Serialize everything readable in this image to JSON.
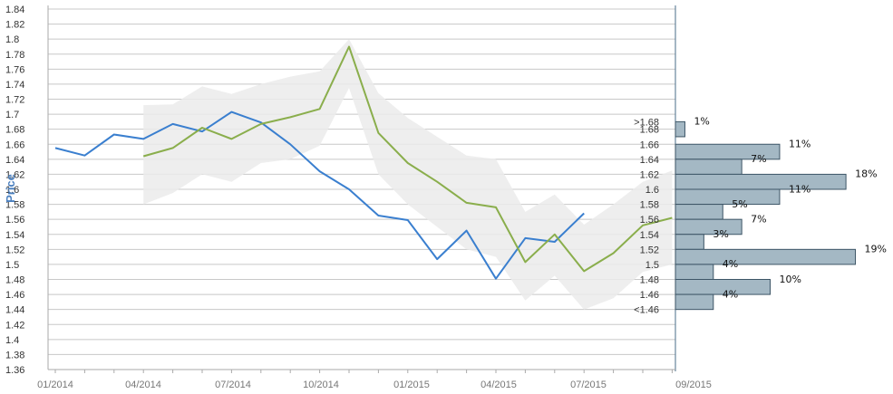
{
  "chart_data": {
    "type": "line",
    "ylabel": "Price",
    "ylim": [
      1.36,
      1.84
    ],
    "yticks": [
      "1.84",
      "1.82",
      "1.8",
      "1.78",
      "1.76",
      "1.74",
      "1.72",
      "1.7",
      "1.68",
      "1.66",
      "1.64",
      "1.62",
      "1.6",
      "1.58",
      "1.56",
      "1.54",
      "1.52",
      "1.5",
      "1.48",
      "1.46",
      "1.44",
      "1.42",
      "1.4",
      "1.38",
      "1.36"
    ],
    "xtick_labels": [
      "01/2014",
      "04/2014",
      "07/2014",
      "10/2014",
      "01/2015",
      "04/2015",
      "07/2015",
      "09/2015"
    ],
    "grid": true,
    "colors": {
      "blue": "#3a7fcf",
      "green": "#8aae4c",
      "band": "#ebebeb",
      "bar_fill": "#a4b8c4",
      "bar_stroke": "#3d5566",
      "grid": "#c8c8c8",
      "ylabel": "#4a7fbf"
    },
    "series": [
      {
        "color": "blue",
        "x": [
          "2014-01",
          "2014-02",
          "2014-03",
          "2014-04",
          "2014-05",
          "2014-06",
          "2014-07",
          "2014-08",
          "2014-09",
          "2014-10",
          "2014-11",
          "2014-12",
          "2015-01",
          "2015-02",
          "2015-03",
          "2015-04",
          "2015-05",
          "2015-06",
          "2015-07"
        ],
        "values": [
          1.655,
          1.645,
          1.673,
          1.667,
          1.687,
          1.677,
          1.703,
          1.689,
          1.66,
          1.624,
          1.6,
          1.565,
          1.559,
          1.507,
          1.545,
          1.481,
          1.535,
          1.53,
          1.568
        ]
      },
      {
        "color": "green",
        "x": [
          "2014-04",
          "2014-05",
          "2014-06",
          "2014-07",
          "2014-08",
          "2014-09",
          "2014-10",
          "2014-11",
          "2014-12",
          "2015-01",
          "2015-02",
          "2015-03",
          "2015-04",
          "2015-05",
          "2015-06",
          "2015-07",
          "2015-08",
          "2015-09",
          "2015-10"
        ],
        "values": [
          1.644,
          1.655,
          1.682,
          1.667,
          1.687,
          1.696,
          1.707,
          1.79,
          1.675,
          1.635,
          1.61,
          1.582,
          1.576,
          1.503,
          1.54,
          1.491,
          1.515,
          1.552,
          1.562
        ]
      }
    ],
    "band": {
      "x": [
        "2014-04",
        "2014-05",
        "2014-06",
        "2014-07",
        "2014-08",
        "2014-09",
        "2014-10",
        "2014-11",
        "2014-12",
        "2015-01",
        "2015-02",
        "2015-03",
        "2015-04",
        "2015-05",
        "2015-06",
        "2015-07",
        "2015-08",
        "2015-09",
        "2015-10"
      ],
      "upper": [
        1.712,
        1.713,
        1.737,
        1.727,
        1.74,
        1.75,
        1.757,
        1.8,
        1.728,
        1.695,
        1.67,
        1.645,
        1.64,
        1.57,
        1.593,
        1.553,
        1.58,
        1.61,
        1.625
      ],
      "lower": [
        1.58,
        1.595,
        1.62,
        1.61,
        1.635,
        1.64,
        1.658,
        1.735,
        1.62,
        1.58,
        1.55,
        1.52,
        1.51,
        1.452,
        1.485,
        1.44,
        1.455,
        1.49,
        1.5
      ]
    },
    "histogram": {
      "labels": [
        ">1.68",
        "1.68",
        "1.66",
        "1.64",
        "1.62",
        "1.6",
        "1.58",
        "1.56",
        "1.54",
        "1.52",
        "1.5",
        "1.48",
        "1.46",
        "<1.46"
      ],
      "bins": [
        {
          "top": 1.69,
          "bottom": 1.67,
          "percent": 1,
          "label": "1%"
        },
        {
          "top": 1.66,
          "bottom": 1.64,
          "percent": 11,
          "label": "11%"
        },
        {
          "top": 1.64,
          "bottom": 1.62,
          "percent": 7,
          "label": "7%"
        },
        {
          "top": 1.62,
          "bottom": 1.6,
          "percent": 18,
          "label": "18%"
        },
        {
          "top": 1.6,
          "bottom": 1.58,
          "percent": 11,
          "label": "11%"
        },
        {
          "top": 1.58,
          "bottom": 1.56,
          "percent": 5,
          "label": "5%"
        },
        {
          "top": 1.56,
          "bottom": 1.54,
          "percent": 7,
          "label": "7%"
        },
        {
          "top": 1.54,
          "bottom": 1.52,
          "percent": 3,
          "label": "3%"
        },
        {
          "top": 1.52,
          "bottom": 1.5,
          "percent": 19,
          "label": "19%"
        },
        {
          "top": 1.5,
          "bottom": 1.48,
          "percent": 4,
          "label": "4%"
        },
        {
          "top": 1.48,
          "bottom": 1.46,
          "percent": 10,
          "label": "10%"
        },
        {
          "top": 1.46,
          "bottom": 1.44,
          "percent": 4,
          "label": "4%"
        }
      ]
    }
  }
}
